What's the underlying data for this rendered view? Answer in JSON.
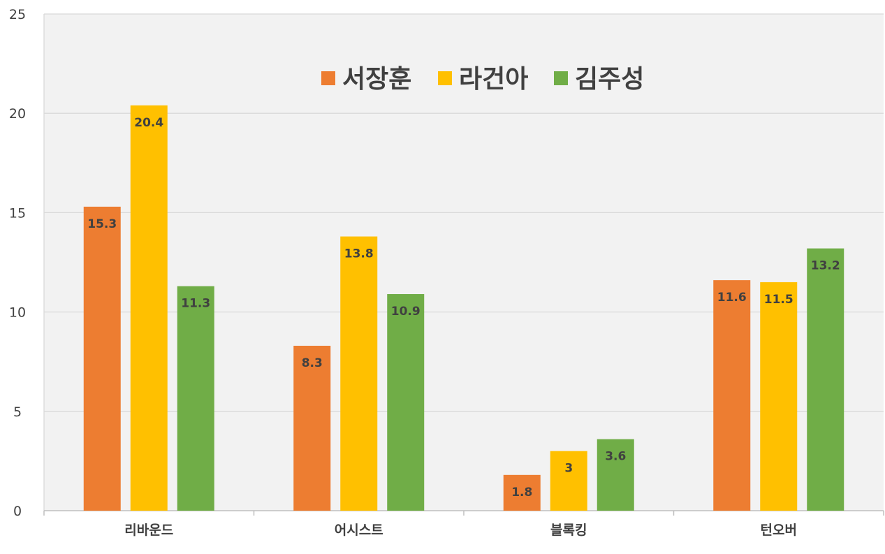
{
  "chart_data": {
    "type": "bar",
    "categories": [
      "리바운드",
      "어시스트",
      "블록킹",
      "턴오버"
    ],
    "series": [
      {
        "name": "서장훈",
        "color": "#ED7D31",
        "values": [
          15.3,
          8.3,
          1.8,
          11.6
        ]
      },
      {
        "name": "라건아",
        "color": "#FFC000",
        "values": [
          20.4,
          13.8,
          3,
          11.5
        ]
      },
      {
        "name": "김주성",
        "color": "#70AD47",
        "values": [
          11.3,
          10.9,
          3.6,
          13.2
        ]
      }
    ],
    "ylim": [
      0,
      25
    ],
    "yticks": [
      0,
      5,
      10,
      15,
      20,
      25
    ],
    "grid": true,
    "legend_position": "top-center",
    "plot_background": "#F2F2F2",
    "gridline_color": "#D9D9D9"
  }
}
